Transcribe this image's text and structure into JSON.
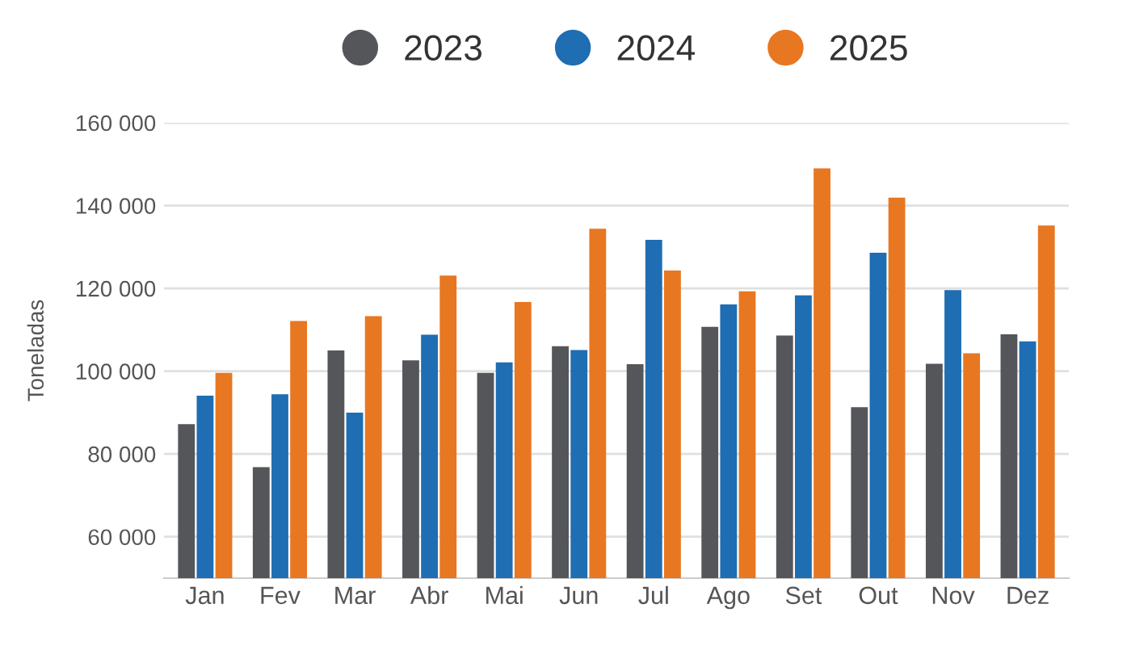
{
  "chart_data": {
    "type": "bar",
    "ylabel": "Toneladas",
    "categories": [
      "Jan",
      "Fev",
      "Mar",
      "Abr",
      "Mai",
      "Jun",
      "Jul",
      "Ago",
      "Set",
      "Out",
      "Nov",
      "Dez"
    ],
    "series": [
      {
        "name": "2023",
        "color": "#54565a",
        "values": [
          87200,
          76800,
          105000,
          102600,
          99600,
          106000,
          101700,
          110700,
          108600,
          91300,
          101800,
          108900
        ]
      },
      {
        "name": "2024",
        "color": "#1f6db2",
        "values": [
          94100,
          94400,
          90000,
          108800,
          102100,
          105100,
          131700,
          116100,
          118300,
          128600,
          119600,
          107200
        ]
      },
      {
        "name": "2025",
        "color": "#e87722",
        "values": [
          99600,
          112100,
          113300,
          123100,
          116700,
          134400,
          124300,
          119300,
          149000,
          141900,
          104300,
          135200
        ]
      }
    ],
    "ylim": [
      50000,
      160000
    ],
    "yticks": [
      {
        "value": 60000,
        "label": "60 000"
      },
      {
        "value": 80000,
        "label": "80 000"
      },
      {
        "value": 100000,
        "label": "100 000"
      },
      {
        "value": 120000,
        "label": "120 000"
      },
      {
        "value": 140000,
        "label": "140 000"
      },
      {
        "value": 160000,
        "label": "160 000"
      }
    ],
    "grid": "y",
    "legend": "top"
  }
}
